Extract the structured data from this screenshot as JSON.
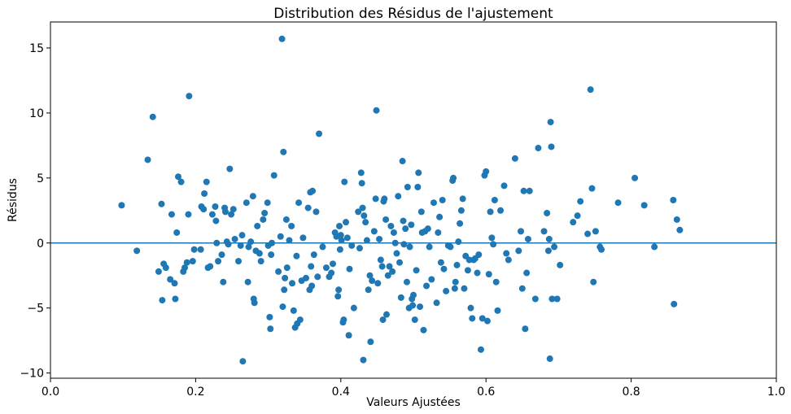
{
  "chart_data": {
    "type": "scatter",
    "title": "Distribution des Résidus de l'ajustement",
    "xlabel": "Valeurs Ajustées",
    "ylabel": "Résidus",
    "xlim": [
      0.0,
      1.0
    ],
    "ylim": [
      -10.4,
      17.0
    ],
    "xticks": [
      0.0,
      0.2,
      0.4,
      0.6,
      0.8,
      1.0
    ],
    "xtick_labels": [
      "0.0",
      "0.2",
      "0.4",
      "0.6",
      "0.8",
      "1.0"
    ],
    "yticks": [
      -10,
      -5,
      0,
      5,
      10,
      15
    ],
    "ytick_labels": [
      "−10",
      "−5",
      "0",
      "5",
      "10",
      "15"
    ],
    "grid": false,
    "reference_line": {
      "y": 0,
      "color": "#1f77b4"
    },
    "marker_color": "#1f77b4",
    "points": [
      [
        0.098,
        2.9
      ],
      [
        0.119,
        -0.6
      ],
      [
        0.134,
        6.4
      ],
      [
        0.141,
        9.7
      ],
      [
        0.149,
        -2.2
      ],
      [
        0.153,
        3.0
      ],
      [
        0.154,
        -4.4
      ],
      [
        0.156,
        -1.6
      ],
      [
        0.159,
        -1.9
      ],
      [
        0.165,
        -2.8
      ],
      [
        0.167,
        2.2
      ],
      [
        0.171,
        -3.1
      ],
      [
        0.172,
        -4.3
      ],
      [
        0.174,
        0.8
      ],
      [
        0.176,
        5.1
      ],
      [
        0.18,
        4.7
      ],
      [
        0.183,
        -2.2
      ],
      [
        0.185,
        -1.9
      ],
      [
        0.188,
        -1.5
      ],
      [
        0.19,
        2.2
      ],
      [
        0.191,
        11.3
      ],
      [
        0.196,
        -1.4
      ],
      [
        0.198,
        -0.5
      ],
      [
        0.207,
        -0.5
      ],
      [
        0.208,
        2.8
      ],
      [
        0.211,
        2.6
      ],
      [
        0.212,
        3.8
      ],
      [
        0.215,
        4.7
      ],
      [
        0.217,
        -1.9
      ],
      [
        0.22,
        -1.8
      ],
      [
        0.223,
        2.2
      ],
      [
        0.227,
        2.8
      ],
      [
        0.228,
        1.7
      ],
      [
        0.229,
        0.0
      ],
      [
        0.231,
        -1.4
      ],
      [
        0.236,
        -0.9
      ],
      [
        0.238,
        -3.0
      ],
      [
        0.24,
        2.7
      ],
      [
        0.241,
        2.4
      ],
      [
        0.243,
        0.1
      ],
      [
        0.245,
        -0.1
      ],
      [
        0.247,
        5.7
      ],
      [
        0.249,
        2.2
      ],
      [
        0.252,
        2.6
      ],
      [
        0.254,
        0.3
      ],
      [
        0.259,
        -1.4
      ],
      [
        0.262,
        -0.2
      ],
      [
        0.264,
        0.6
      ],
      [
        0.265,
        -9.1
      ],
      [
        0.27,
        3.1
      ],
      [
        0.272,
        -3.0
      ],
      [
        0.273,
        -0.3
      ],
      [
        0.276,
        0.1
      ],
      [
        0.279,
        3.6
      ],
      [
        0.28,
        -4.3
      ],
      [
        0.281,
        -4.6
      ],
      [
        0.283,
        -0.6
      ],
      [
        0.285,
        1.3
      ],
      [
        0.288,
        -0.8
      ],
      [
        0.29,
        -1.4
      ],
      [
        0.293,
        1.8
      ],
      [
        0.295,
        2.3
      ],
      [
        0.299,
        3.1
      ],
      [
        0.3,
        -0.2
      ],
      [
        0.302,
        -5.7
      ],
      [
        0.303,
        -6.6
      ],
      [
        0.304,
        -0.9
      ],
      [
        0.305,
        0.0
      ],
      [
        0.308,
        5.2
      ],
      [
        0.314,
        -2.2
      ],
      [
        0.317,
        0.5
      ],
      [
        0.319,
        15.7
      ],
      [
        0.32,
        -4.9
      ],
      [
        0.321,
        7.0
      ],
      [
        0.322,
        -3.6
      ],
      [
        0.323,
        -2.7
      ],
      [
        0.325,
        1.8
      ],
      [
        0.326,
        -1.9
      ],
      [
        0.329,
        0.2
      ],
      [
        0.332,
        1.3
      ],
      [
        0.333,
        -3.1
      ],
      [
        0.335,
        -5.2
      ],
      [
        0.337,
        -6.5
      ],
      [
        0.339,
        -1.0
      ],
      [
        0.34,
        -6.2
      ],
      [
        0.342,
        3.1
      ],
      [
        0.344,
        -5.9
      ],
      [
        0.346,
        -2.9
      ],
      [
        0.348,
        0.4
      ],
      [
        0.352,
        -2.7
      ],
      [
        0.355,
        2.7
      ],
      [
        0.357,
        -3.6
      ],
      [
        0.358,
        3.9
      ],
      [
        0.359,
        -1.8
      ],
      [
        0.36,
        -3.3
      ],
      [
        0.361,
        4.0
      ],
      [
        0.363,
        -0.9
      ],
      [
        0.366,
        2.4
      ],
      [
        0.368,
        -2.6
      ],
      [
        0.37,
        8.4
      ],
      [
        0.375,
        -0.3
      ],
      [
        0.38,
        -1.9
      ],
      [
        0.384,
        -2.6
      ],
      [
        0.387,
        -2.3
      ],
      [
        0.389,
        -1.6
      ],
      [
        0.392,
        0.8
      ],
      [
        0.394,
        0.5
      ],
      [
        0.396,
        -4.1
      ],
      [
        0.397,
        -3.6
      ],
      [
        0.398,
        1.3
      ],
      [
        0.399,
        -0.5
      ],
      [
        0.4,
        0.6
      ],
      [
        0.401,
        0.2
      ],
      [
        0.403,
        -6.1
      ],
      [
        0.404,
        -5.9
      ],
      [
        0.405,
        4.7
      ],
      [
        0.407,
        1.6
      ],
      [
        0.409,
        0.4
      ],
      [
        0.411,
        -7.1
      ],
      [
        0.412,
        -2.0
      ],
      [
        0.415,
        -0.2
      ],
      [
        0.418,
        -5.0
      ],
      [
        0.424,
        2.4
      ],
      [
        0.426,
        -0.4
      ],
      [
        0.428,
        5.4
      ],
      [
        0.429,
        4.6
      ],
      [
        0.43,
        2.7
      ],
      [
        0.431,
        -9.0
      ],
      [
        0.432,
        2.1
      ],
      [
        0.434,
        1.6
      ],
      [
        0.436,
        0.2
      ],
      [
        0.438,
        -3.6
      ],
      [
        0.44,
        -2.5
      ],
      [
        0.441,
        -7.6
      ],
      [
        0.443,
        -2.9
      ],
      [
        0.446,
        0.9
      ],
      [
        0.448,
        3.4
      ],
      [
        0.449,
        10.2
      ],
      [
        0.451,
        -3.1
      ],
      [
        0.453,
        0.3
      ],
      [
        0.455,
        -1.3
      ],
      [
        0.457,
        -1.8
      ],
      [
        0.458,
        -5.9
      ],
      [
        0.459,
        3.2
      ],
      [
        0.46,
        3.4
      ],
      [
        0.462,
        1.8
      ],
      [
        0.463,
        -5.5
      ],
      [
        0.465,
        -2.5
      ],
      [
        0.467,
        -1.8
      ],
      [
        0.469,
        1.3
      ],
      [
        0.471,
        -2.2
      ],
      [
        0.473,
        0.8
      ],
      [
        0.475,
        0.0
      ],
      [
        0.477,
        -0.8
      ],
      [
        0.479,
        3.6
      ],
      [
        0.481,
        -1.5
      ],
      [
        0.483,
        -4.2
      ],
      [
        0.485,
        6.3
      ],
      [
        0.486,
        1.7
      ],
      [
        0.487,
        -0.1
      ],
      [
        0.489,
        1.1
      ],
      [
        0.491,
        -3.0
      ],
      [
        0.492,
        4.3
      ],
      [
        0.494,
        -5.0
      ],
      [
        0.495,
        -0.3
      ],
      [
        0.497,
        1.4
      ],
      [
        0.498,
        -4.3
      ],
      [
        0.499,
        -4.8
      ],
      [
        0.5,
        -4.0
      ],
      [
        0.502,
        -5.9
      ],
      [
        0.504,
        -2.1
      ],
      [
        0.506,
        4.3
      ],
      [
        0.507,
        5.4
      ],
      [
        0.509,
        -4.9
      ],
      [
        0.511,
        2.4
      ],
      [
        0.512,
        0.8
      ],
      [
        0.514,
        -6.7
      ],
      [
        0.516,
        0.9
      ],
      [
        0.518,
        -3.3
      ],
      [
        0.52,
        1.1
      ],
      [
        0.522,
        -0.3
      ],
      [
        0.525,
        -2.8
      ],
      [
        0.528,
        3.1
      ],
      [
        0.532,
        -4.6
      ],
      [
        0.534,
        0.8
      ],
      [
        0.536,
        2.0
      ],
      [
        0.538,
        -1.5
      ],
      [
        0.54,
        3.3
      ],
      [
        0.542,
        -2.0
      ],
      [
        0.545,
        -3.7
      ],
      [
        0.548,
        -0.2
      ],
      [
        0.551,
        -0.3
      ],
      [
        0.554,
        4.8
      ],
      [
        0.555,
        5.0
      ],
      [
        0.557,
        -3.5
      ],
      [
        0.558,
        -3.0
      ],
      [
        0.56,
        -1.7
      ],
      [
        0.562,
        0.1
      ],
      [
        0.564,
        1.5
      ],
      [
        0.566,
        2.5
      ],
      [
        0.568,
        3.4
      ],
      [
        0.57,
        -3.5
      ],
      [
        0.572,
        -1.0
      ],
      [
        0.575,
        -2.1
      ],
      [
        0.577,
        -1.3
      ],
      [
        0.579,
        -5.0
      ],
      [
        0.581,
        -5.8
      ],
      [
        0.583,
        -1.3
      ],
      [
        0.585,
        -1.2
      ],
      [
        0.588,
        -2.3
      ],
      [
        0.59,
        -0.9
      ],
      [
        0.593,
        -8.2
      ],
      [
        0.595,
        -5.8
      ],
      [
        0.598,
        5.2
      ],
      [
        0.6,
        5.5
      ],
      [
        0.602,
        -6.0
      ],
      [
        0.604,
        -2.4
      ],
      [
        0.606,
        2.4
      ],
      [
        0.608,
        0.4
      ],
      [
        0.61,
        -0.1
      ],
      [
        0.612,
        3.3
      ],
      [
        0.614,
        -3.0
      ],
      [
        0.616,
        -5.2
      ],
      [
        0.62,
        2.5
      ],
      [
        0.625,
        4.4
      ],
      [
        0.628,
        -0.8
      ],
      [
        0.631,
        -1.3
      ],
      [
        0.64,
        6.5
      ],
      [
        0.645,
        -0.6
      ],
      [
        0.648,
        0.9
      ],
      [
        0.65,
        -3.5
      ],
      [
        0.652,
        4.0
      ],
      [
        0.654,
        -6.6
      ],
      [
        0.656,
        -2.3
      ],
      [
        0.658,
        0.3
      ],
      [
        0.66,
        4.0
      ],
      [
        0.668,
        -4.3
      ],
      [
        0.672,
        7.3
      ],
      [
        0.68,
        0.9
      ],
      [
        0.684,
        2.3
      ],
      [
        0.686,
        -0.6
      ],
      [
        0.687,
        0.3
      ],
      [
        0.688,
        -8.9
      ],
      [
        0.689,
        9.3
      ],
      [
        0.69,
        7.4
      ],
      [
        0.691,
        -4.3
      ],
      [
        0.694,
        -0.3
      ],
      [
        0.698,
        -4.3
      ],
      [
        0.702,
        -1.7
      ],
      [
        0.72,
        1.6
      ],
      [
        0.726,
        2.1
      ],
      [
        0.73,
        3.2
      ],
      [
        0.74,
        0.7
      ],
      [
        0.744,
        11.8
      ],
      [
        0.746,
        4.2
      ],
      [
        0.748,
        -3.0
      ],
      [
        0.751,
        0.9
      ],
      [
        0.757,
        -0.3
      ],
      [
        0.759,
        -0.5
      ],
      [
        0.782,
        3.1
      ],
      [
        0.805,
        5.0
      ],
      [
        0.818,
        2.9
      ],
      [
        0.832,
        -0.3
      ],
      [
        0.858,
        3.3
      ],
      [
        0.859,
        -4.7
      ],
      [
        0.863,
        1.8
      ],
      [
        0.867,
        1.0
      ]
    ]
  }
}
